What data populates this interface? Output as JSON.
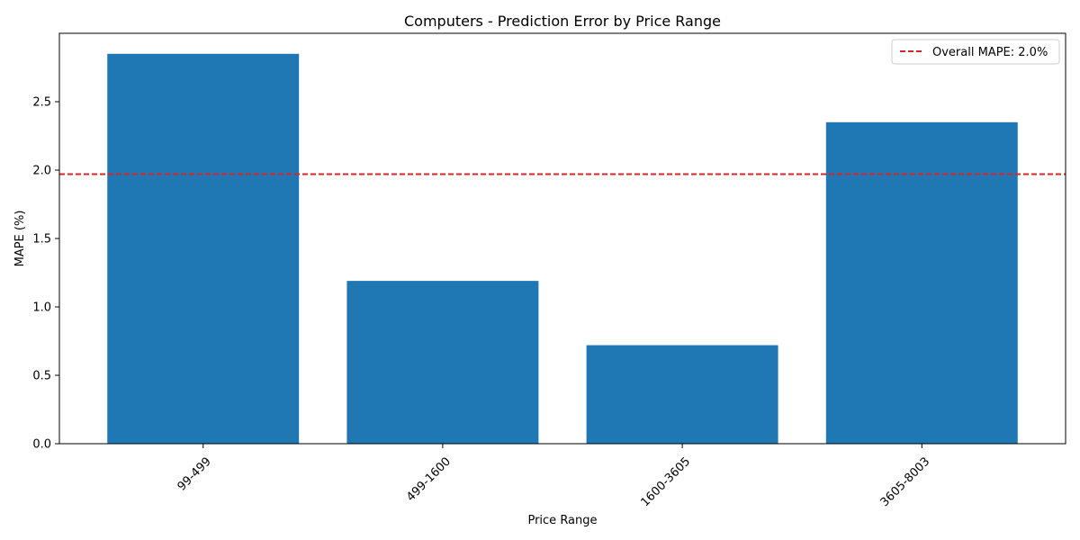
{
  "chart_data": {
    "type": "bar",
    "title": "Computers - Prediction Error by Price Range",
    "xlabel": "Price Range",
    "ylabel": "MAPE (%)",
    "categories": [
      "99-499",
      "499-1600",
      "1600-3605",
      "3605-8003"
    ],
    "values": [
      2.85,
      1.19,
      0.72,
      2.35
    ],
    "ylim": [
      0,
      3.0
    ],
    "yticks": [
      "0.0",
      "0.5",
      "1.0",
      "1.5",
      "2.0",
      "2.5"
    ],
    "bar_color": "#1f77b4",
    "reference_line": {
      "value": 1.97,
      "label": "Overall MAPE: 2.0%",
      "color": "#d62728",
      "style": "dashed"
    },
    "legend_position": "top-right",
    "grid": false,
    "xtick_rotation": "45 degrees"
  }
}
